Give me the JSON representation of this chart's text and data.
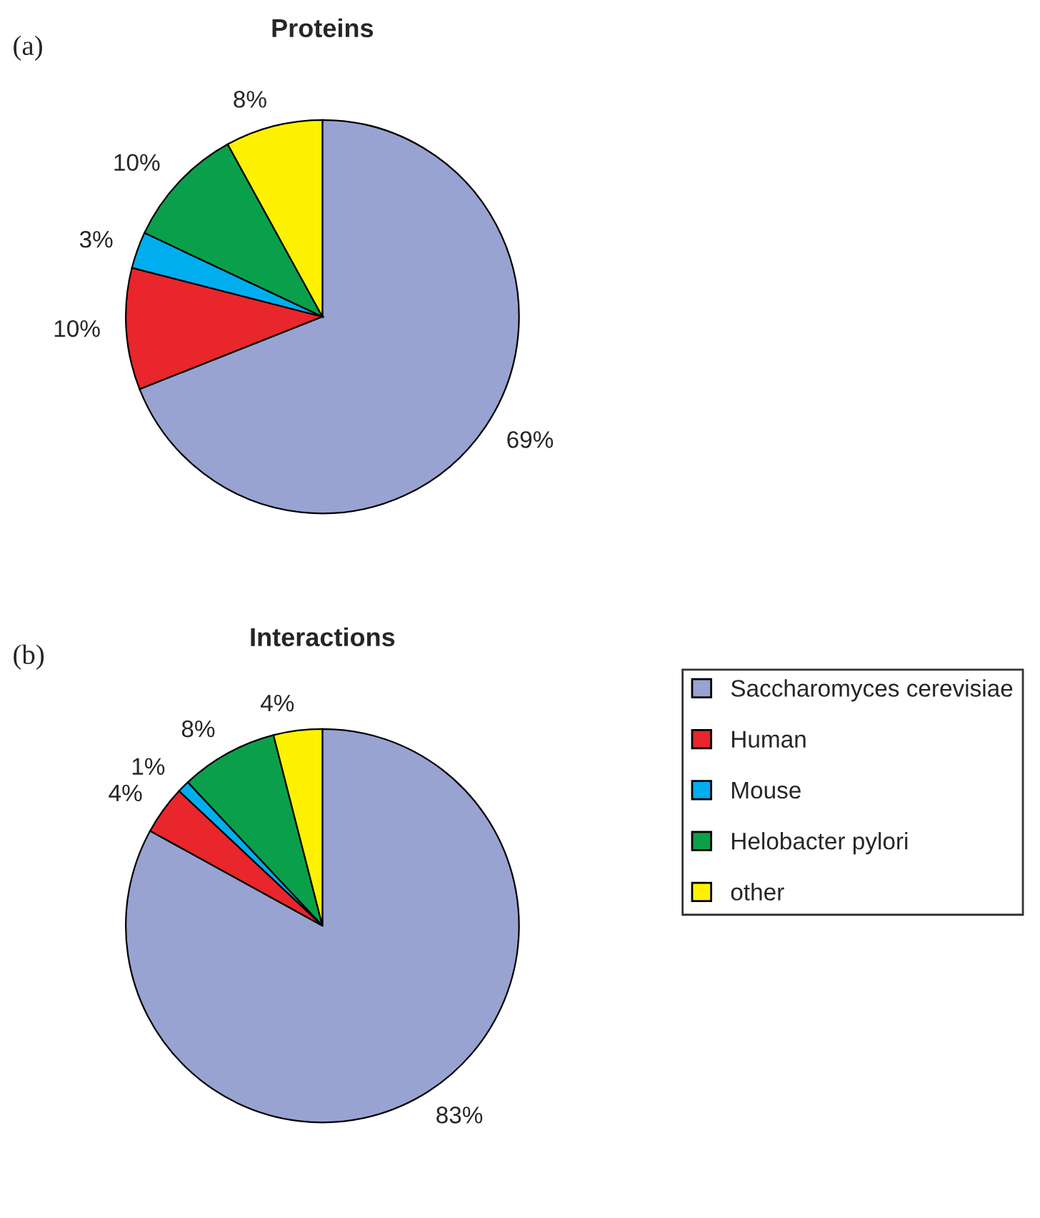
{
  "chart_data": [
    {
      "type": "pie",
      "title": "Proteins",
      "annotations": [
        "(a)"
      ],
      "categories": [
        null,
        null,
        null,
        null,
        null
      ],
      "values": [
        69,
        10,
        3,
        10,
        8
      ],
      "value_labels": [
        "69%",
        "10%",
        "3%",
        "10%",
        "8%"
      ],
      "colors": [
        "#99a3d1",
        "#e8262b",
        "#00aeef",
        "#0aa04b",
        "#fff200"
      ]
    },
    {
      "type": "pie",
      "title": "Interactions",
      "annotations": [
        "(b)"
      ],
      "categories": [
        "Saccharomyces cerevisiae",
        "Human",
        "Mouse",
        "Helobacter pylori",
        "other"
      ],
      "values": [
        83,
        4,
        1,
        8,
        4
      ],
      "value_labels": [
        "83%",
        "4%",
        "1%",
        "8%",
        "4%"
      ],
      "colors": [
        "#99a3d1",
        "#e8262b",
        "#00aeef",
        "#0aa04b",
        "#fff200"
      ],
      "legend": "right"
    }
  ]
}
